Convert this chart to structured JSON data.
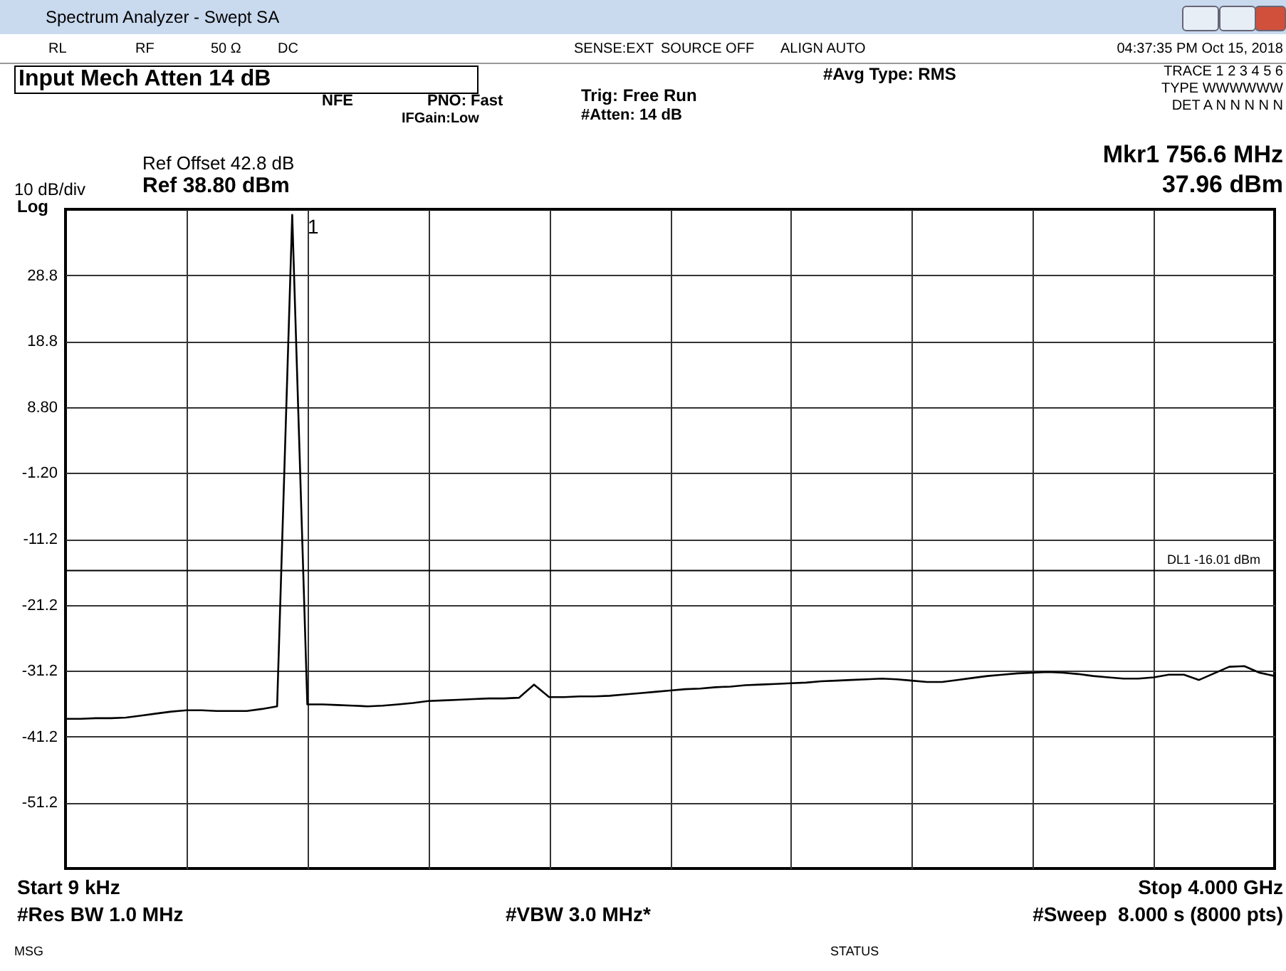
{
  "chart_data": {
    "type": "line",
    "title": "Spectrum Analyzer - Swept SA",
    "categories": [
      null,
      null,
      null,
      null,
      null,
      null,
      null,
      null,
      null,
      null,
      null,
      null,
      null,
      null,
      null,
      null,
      null,
      null,
      null,
      null,
      null,
      null,
      null,
      null,
      null,
      null,
      null,
      null,
      null,
      null,
      null,
      null,
      null,
      null,
      null,
      null,
      null,
      null,
      null,
      null,
      null,
      null,
      null,
      null,
      null,
      null,
      null,
      null,
      null,
      null,
      null,
      null,
      null,
      null,
      null,
      null,
      null,
      null,
      null,
      null,
      null,
      null,
      null,
      null,
      null,
      null,
      null,
      null,
      null,
      null,
      null,
      null,
      null,
      null,
      null,
      null,
      null,
      null,
      null,
      null,
      null
    ],
    "series": [
      {
        "color": "#000000",
        "values": [
          -38.5,
          -38.5,
          -38.4,
          -38.4,
          -38.3,
          -38.0,
          -37.7,
          -37.4,
          -37.2,
          -37.2,
          -37.3,
          -37.3,
          -37.3,
          -37.0,
          -36.6,
          37.96,
          -36.3,
          -36.3,
          -36.4,
          -36.5,
          -36.6,
          -36.5,
          -36.3,
          -36.1,
          -35.8,
          -35.7,
          -35.6,
          -35.5,
          -35.4,
          -35.4,
          -35.3,
          -33.3,
          -35.2,
          -35.2,
          -35.1,
          -35.1,
          -35.0,
          -34.8,
          -34.6,
          -34.4,
          -34.2,
          -34.0,
          -33.9,
          -33.7,
          -33.6,
          -33.4,
          -33.3,
          -33.2,
          -33.1,
          -33.0,
          -32.8,
          -32.7,
          -32.6,
          -32.5,
          -32.4,
          -32.5,
          -32.7,
          -32.9,
          -32.9,
          -32.6,
          -32.3,
          -32.0,
          -31.8,
          -31.6,
          -31.5,
          -31.4,
          -31.5,
          -31.7,
          -32.0,
          -32.2,
          -32.4,
          -32.4,
          -32.2,
          -31.8,
          -31.8,
          -32.6,
          -31.6,
          -30.6,
          -30.5,
          -31.5,
          -32.0
        ]
      }
    ],
    "ylim": [
      -61.2,
      38.8
    ],
    "yticks": [
      28.8,
      18.8,
      {
        "value": 8.8,
        "label": "8.80"
      },
      {
        "value": -1.2,
        "label": "-1.20"
      },
      -11.2,
      -21.2,
      -31.2,
      -41.2,
      -51.2
    ],
    "tick_labels": "y",
    "grid": true,
    "line_style": "solid",
    "marker": "none",
    "ref_lines": [
      {
        "axis": "y",
        "value": -16.01,
        "label": "DL1 -16.01 dBm",
        "color": "#000000"
      }
    ],
    "annotations": [
      "1",
      "RL",
      "RF",
      "50 Ω",
      "DC",
      "SENSE:EXT",
      "SOURCE OFF",
      "ALIGN AUTO",
      "04:37:35 PM Oct 15, 2018",
      "Input Mech Atten 14 dB",
      "NFE",
      "PNO: Fast",
      "IFGain:Low",
      "Trig: Free Run",
      "#Atten: 14 dB",
      "#Avg Type: RMS",
      "TRACE 1 2 3 4 5 6",
      "TYPE WWWWWW",
      "DET A N N N N N",
      "Ref Offset 42.8 dB",
      "10 dB/div",
      "Log",
      "Ref 38.80 dBm",
      "Mkr1 756.6 MHz",
      "37.96 dBm",
      "Start 9 kHz",
      "Stop 4.000 GHz",
      "#Res BW 1.0 MHz",
      "#VBW 3.0 MHz*",
      "#Sweep  8.000 s (8000 pts)",
      "MSG",
      "STATUS"
    ]
  }
}
